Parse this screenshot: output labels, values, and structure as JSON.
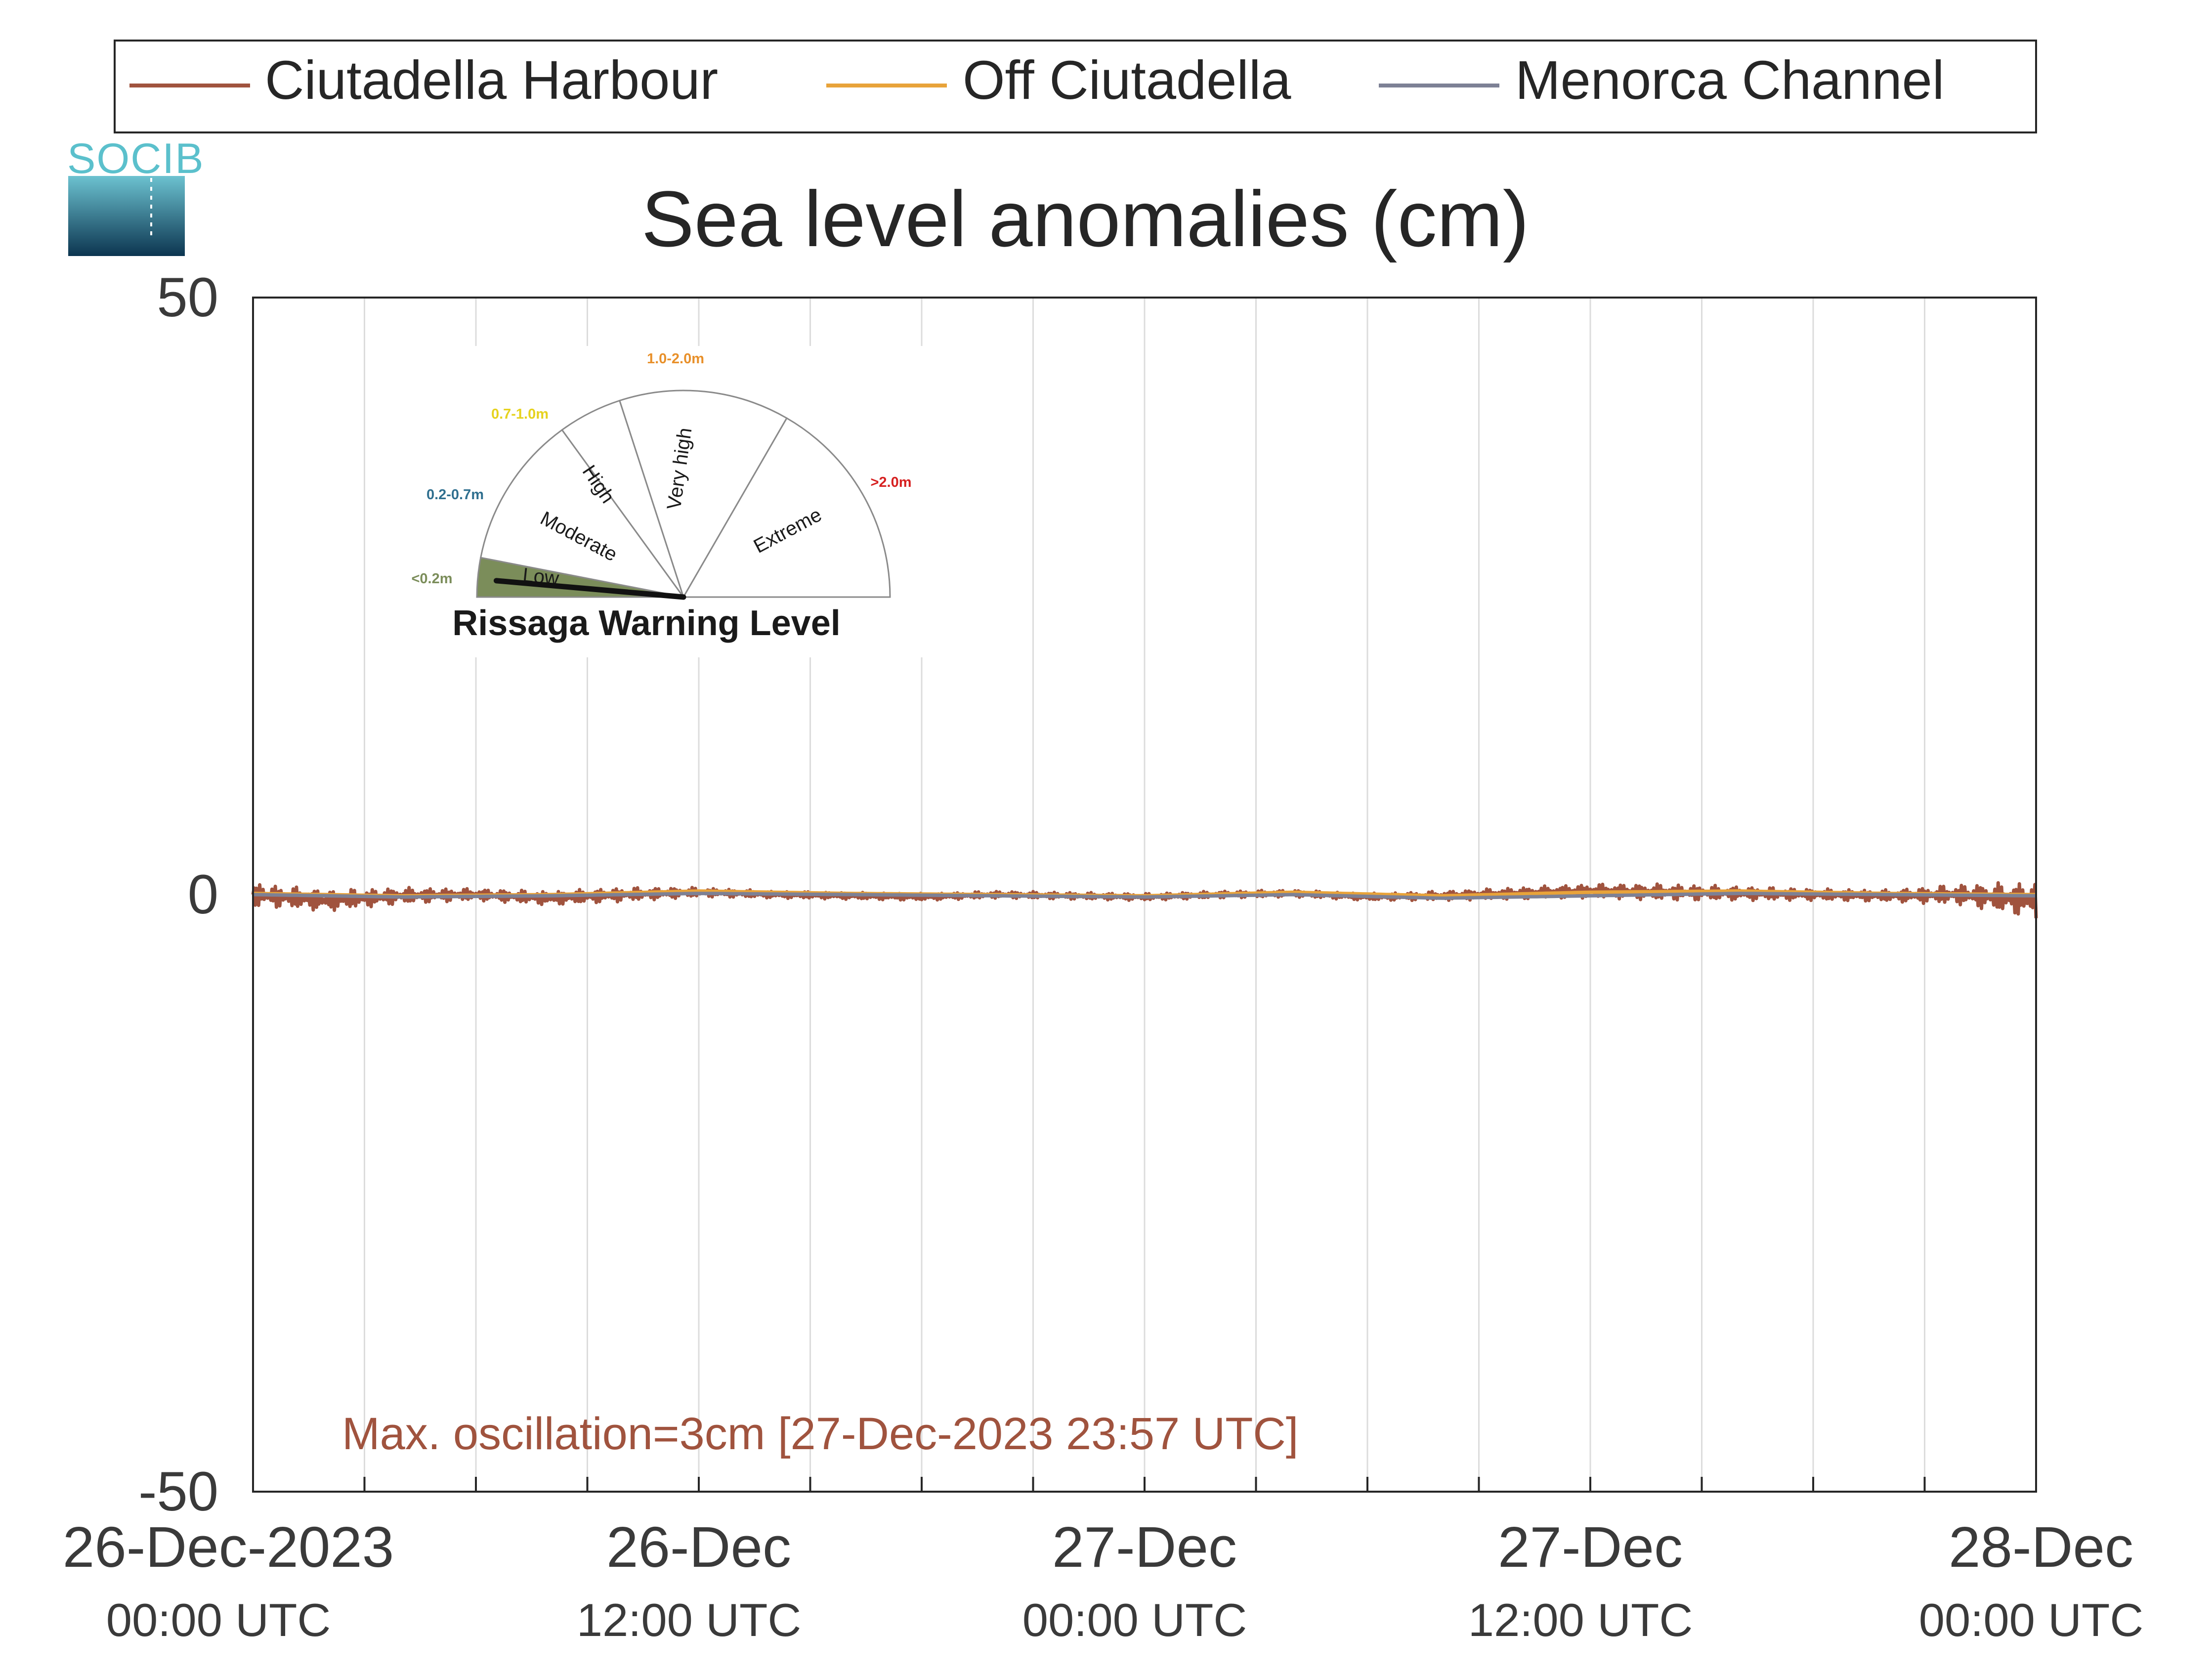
{
  "logo": {
    "text": "SOCIB"
  },
  "legend": {
    "items": [
      {
        "label": "Ciutadella Harbour",
        "color": "#a0533e"
      },
      {
        "label": "Off Ciutadella",
        "color": "#e8a33a"
      },
      {
        "label": "Menorca Channel",
        "color": "#7d8195"
      }
    ]
  },
  "chart_data": {
    "type": "line",
    "title": "Sea level anomalies (cm)",
    "xlabel": "",
    "ylabel": "",
    "ylim": [
      -50,
      50
    ],
    "yticks": [
      -50,
      0,
      50
    ],
    "xlim_hours": [
      0,
      48
    ],
    "xticks": [
      {
        "hour": 0,
        "line1": "26-Dec-2023",
        "line2": "00:00 UTC"
      },
      {
        "hour": 12,
        "line1": "26-Dec",
        "line2": "12:00 UTC"
      },
      {
        "hour": 24,
        "line1": "27-Dec",
        "line2": "00:00 UTC"
      },
      {
        "hour": 36,
        "line1": "27-Dec",
        "line2": "12:00 UTC"
      },
      {
        "hour": 48,
        "line1": "28-Dec",
        "line2": "00:00 UTC"
      }
    ],
    "grid_hours": [
      3,
      6,
      9,
      12,
      15,
      18,
      21,
      24,
      27,
      30,
      33,
      36,
      39,
      42,
      45
    ],
    "grid": true,
    "legend_position": "top",
    "series": [
      {
        "name": "Ciutadella Harbour",
        "color": "#a0533e",
        "x": [
          0,
          2,
          4,
          6,
          8,
          10,
          12,
          14,
          16,
          18,
          20,
          22,
          24,
          26,
          28,
          30,
          32,
          34,
          36,
          38,
          40,
          42,
          44,
          46,
          48
        ],
        "y": [
          0.0,
          -0.5,
          -0.1,
          0.0,
          -0.3,
          0.0,
          0.2,
          0.0,
          -0.1,
          -0.2,
          0.0,
          -0.1,
          -0.2,
          0.0,
          0.1,
          -0.2,
          -0.1,
          0.1,
          0.3,
          0.2,
          0.1,
          0.0,
          -0.1,
          0.0,
          -0.5
        ],
        "noise_amplitude": [
          1.0,
          0.9,
          0.7,
          0.5,
          0.6,
          0.6,
          0.4,
          0.3,
          0.3,
          0.3,
          0.3,
          0.3,
          0.3,
          0.3,
          0.3,
          0.3,
          0.4,
          0.5,
          0.6,
          0.7,
          0.6,
          0.5,
          0.5,
          0.9,
          1.6
        ]
      },
      {
        "name": "Off Ciutadella",
        "color": "#e8a33a",
        "x": [
          0,
          4,
          8,
          12,
          16,
          20,
          24,
          28,
          32,
          36,
          40,
          44,
          48
        ],
        "y": [
          0.1,
          -0.1,
          0.0,
          0.3,
          0.1,
          0.0,
          -0.1,
          0.2,
          -0.1,
          0.2,
          0.3,
          0.1,
          0.0
        ]
      },
      {
        "name": "Menorca Channel",
        "color": "#7d8195",
        "x": [
          0,
          4,
          8,
          12,
          16,
          20,
          24,
          28,
          32,
          36,
          40,
          44,
          48
        ],
        "y": [
          0.0,
          -0.2,
          -0.1,
          0.1,
          0.0,
          -0.1,
          -0.2,
          0.0,
          -0.3,
          -0.1,
          0.1,
          0.0,
          -0.1
        ]
      }
    ],
    "annotation": {
      "text": "Max. oscillation=3cm [27-Dec-2023 23:57 UTC]",
      "color": "#a0533e"
    }
  },
  "gauge": {
    "title": "Rissaga Warning Level",
    "current_level": "Low",
    "segments": [
      {
        "label": "Low",
        "range": "<0.2m",
        "range_color": "#7b8d5a",
        "fill": "#7b8d5a"
      },
      {
        "label": "Moderate",
        "range": "0.2-0.7m",
        "range_color": "#2f6f8f",
        "fill": "#ffffff"
      },
      {
        "label": "High",
        "range": "0.7-1.0m",
        "range_color": "#e6d21e",
        "fill": "#ffffff"
      },
      {
        "label": "Very high",
        "range": "1.0-2.0m",
        "range_color": "#e8902a",
        "fill": "#ffffff"
      },
      {
        "label": "Extreme",
        "range": ">2.0m",
        "range_color": "#d62020",
        "fill": "#ffffff"
      }
    ]
  }
}
